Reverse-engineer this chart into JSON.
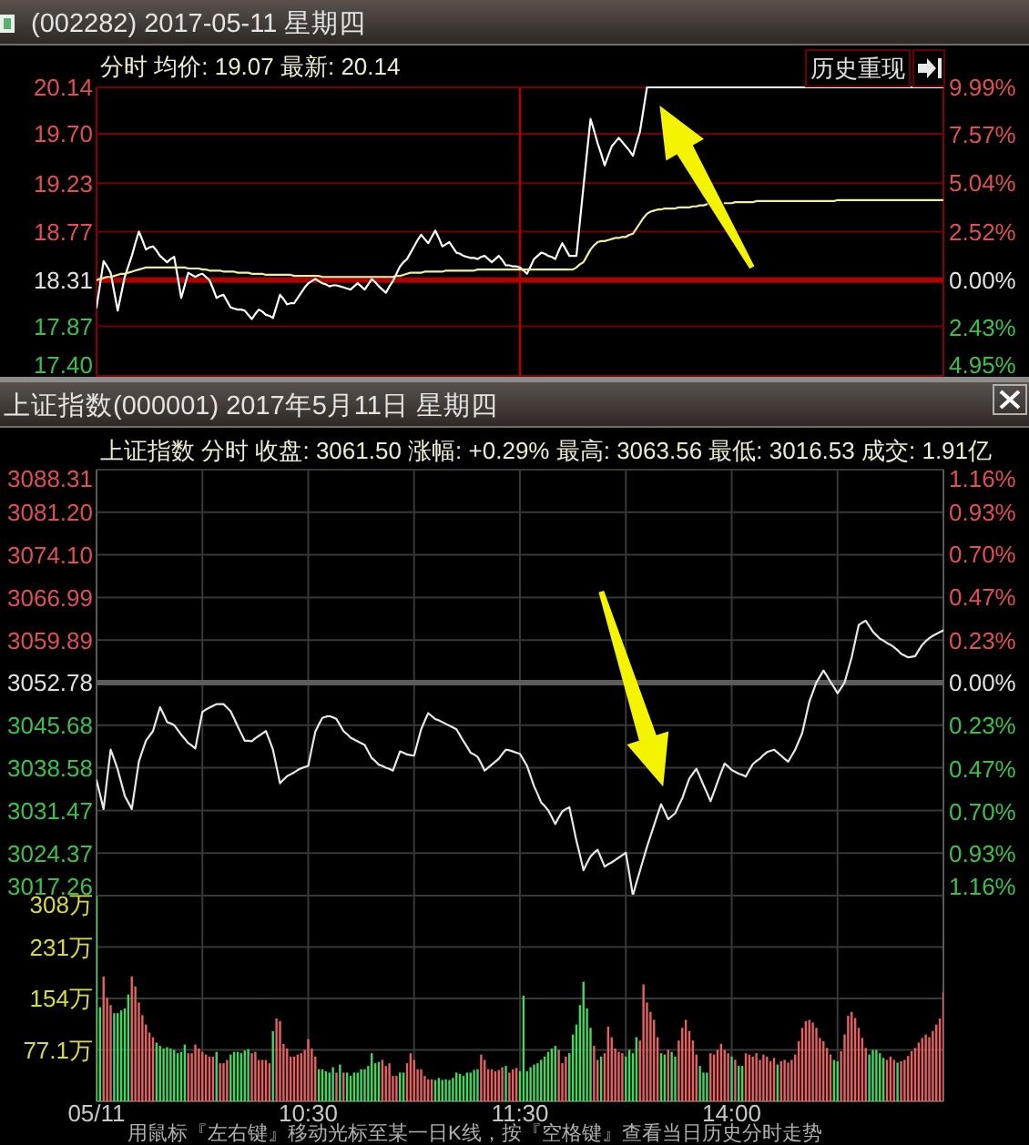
{
  "chart_data": [
    {
      "type": "line",
      "title": "(002282) 2017-05-11 星期四",
      "subtitle": "分时 均价: 19.07 最新: 20.14",
      "annotations": [
        "历史重现"
      ],
      "categories": [
        "05/11",
        null,
        null,
        null,
        null,
        null,
        null,
        null,
        null,
        null,
        null,
        null,
        null,
        null,
        null,
        null,
        null,
        null,
        null,
        null,
        null,
        null,
        null,
        null,
        null,
        null,
        null,
        null,
        null,
        null,
        null,
        null,
        null,
        null,
        null,
        null,
        null,
        null,
        null,
        null,
        null,
        null,
        null,
        null,
        null,
        null,
        null,
        null,
        null,
        null,
        null,
        null,
        null,
        null,
        null,
        null,
        null,
        null,
        null,
        null,
        "10:30",
        null,
        null,
        null,
        null,
        null,
        null,
        null,
        null,
        null,
        null,
        null,
        null,
        null,
        null,
        null,
        null,
        null,
        null,
        null,
        null,
        null,
        null,
        null,
        null,
        null,
        null,
        null,
        null,
        null,
        null,
        null,
        null,
        null,
        null,
        null,
        null,
        null,
        null,
        null,
        null,
        null,
        null,
        null,
        null,
        null,
        null,
        null,
        null,
        null,
        null,
        null,
        null,
        null,
        null,
        null,
        null,
        null,
        null,
        null,
        "11:30",
        null,
        null,
        null,
        null,
        null,
        null,
        null,
        null,
        null,
        null,
        null,
        null,
        null,
        null,
        null,
        null,
        null,
        null,
        null,
        null,
        null,
        null,
        null,
        null,
        null,
        null,
        null,
        null,
        null,
        null,
        null,
        null,
        null,
        null,
        null,
        null,
        null,
        null,
        null,
        null,
        null,
        null,
        null,
        null,
        null,
        null,
        null,
        null,
        null,
        null,
        null,
        null,
        null,
        null,
        null,
        null,
        null,
        null,
        null,
        "14:00",
        null,
        null,
        null,
        null,
        null,
        null,
        null,
        null,
        null,
        null,
        null,
        null,
        null,
        null,
        null,
        null,
        null,
        null,
        null,
        null,
        null,
        null,
        null,
        null,
        null,
        null,
        null,
        null,
        null,
        null,
        null,
        null,
        null,
        null,
        null,
        null,
        null,
        null,
        null,
        null,
        null,
        null,
        null,
        null,
        null,
        null,
        null,
        null,
        null,
        null,
        null,
        null,
        null,
        null,
        null,
        null,
        null,
        null,
        null,
        null
      ],
      "series": [
        {
          "color": "#ffffff",
          "values": [
            18.05,
            18.27,
            18.49,
            18.44,
            18.38,
            18.2,
            18.02,
            18.18,
            18.34,
            18.44,
            18.54,
            18.66,
            18.77,
            18.69,
            18.6,
            18.62,
            18.63,
            18.59,
            18.54,
            18.51,
            18.48,
            18.51,
            18.53,
            18.34,
            18.14,
            18.26,
            18.38,
            18.36,
            18.34,
            18.36,
            18.37,
            18.34,
            18.31,
            18.23,
            18.14,
            18.16,
            18.17,
            18.11,
            18.05,
            18.04,
            18.03,
            18.03,
            18.02,
            17.98,
            17.94,
            17.99,
            18.03,
            18.01,
            17.98,
            17.97,
            17.95,
            18.06,
            18.17,
            18.13,
            18.08,
            18.09,
            18.09,
            18.14,
            18.19,
            18.24,
            18.28,
            18.3,
            18.32,
            18.3,
            18.28,
            18.27,
            18.25,
            18.26,
            18.26,
            18.25,
            18.24,
            18.23,
            18.22,
            18.25,
            18.28,
            18.25,
            18.22,
            18.27,
            18.32,
            18.29,
            18.25,
            18.22,
            18.19,
            18.25,
            18.3,
            18.37,
            18.44,
            18.48,
            18.51,
            18.57,
            18.63,
            18.69,
            18.74,
            18.7,
            18.66,
            18.72,
            18.78,
            18.71,
            18.63,
            18.65,
            18.67,
            18.62,
            18.57,
            18.56,
            18.54,
            18.53,
            18.52,
            18.52,
            18.51,
            18.53,
            18.54,
            18.51,
            18.48,
            18.51,
            18.54,
            18.5,
            18.45,
            18.45,
            18.44,
            18.44,
            18.43,
            18.4,
            18.37,
            18.44,
            18.51,
            18.54,
            18.57,
            18.56,
            18.54,
            18.53,
            18.51,
            18.59,
            18.66,
            18.6,
            18.54,
            18.54,
            18.54,
            18.87,
            19.2,
            19.52,
            19.84,
            19.73,
            19.61,
            19.51,
            19.4,
            19.49,
            19.58,
            19.62,
            19.66,
            19.62,
            19.58,
            19.54,
            19.49,
            19.61,
            19.72,
            19.93,
            20.14,
            20.14,
            20.14,
            20.14,
            20.14,
            20.14,
            20.14,
            20.14,
            20.14,
            20.14,
            20.14,
            20.14,
            20.14,
            20.14,
            20.14,
            20.14,
            20.14,
            20.14,
            20.14,
            20.14,
            20.14,
            20.14,
            20.14,
            20.14,
            20.14,
            20.14,
            20.14,
            20.14,
            20.14,
            20.14,
            20.14,
            20.14,
            20.14,
            20.14,
            20.14,
            20.14,
            20.14,
            20.14,
            20.14,
            20.14,
            20.14,
            20.14,
            20.14,
            20.14,
            20.14,
            20.14,
            20.14,
            20.14,
            20.14,
            20.14,
            20.14,
            20.14,
            20.14,
            20.14,
            20.14,
            20.14,
            20.14,
            20.14,
            20.14,
            20.14,
            20.14,
            20.14,
            20.14,
            20.14,
            20.14,
            20.14,
            20.14,
            20.14,
            20.14,
            20.14,
            20.14,
            20.14,
            20.14,
            20.14,
            20.14,
            20.14,
            20.14,
            20.14,
            20.14,
            20.14,
            20.14,
            20.14,
            20.14,
            20.14,
            20.14
          ]
        },
        {
          "color": "#f0f0a0",
          "values": [
            18.31,
            18.32,
            18.33,
            18.34,
            18.34,
            18.35,
            18.36,
            18.37,
            18.37,
            18.38,
            18.39,
            18.4,
            18.41,
            18.42,
            18.43,
            18.43,
            18.43,
            18.43,
            18.43,
            18.43,
            18.43,
            18.43,
            18.43,
            18.43,
            18.43,
            18.43,
            18.42,
            18.42,
            18.42,
            18.42,
            18.41,
            18.41,
            18.4,
            18.4,
            18.4,
            18.4,
            18.39,
            18.39,
            18.39,
            18.39,
            18.38,
            18.38,
            18.38,
            18.38,
            18.37,
            18.37,
            18.37,
            18.37,
            18.36,
            18.36,
            18.36,
            18.36,
            18.36,
            18.36,
            18.36,
            18.36,
            18.35,
            18.35,
            18.35,
            18.35,
            18.35,
            18.35,
            18.35,
            18.35,
            18.34,
            18.34,
            18.34,
            18.34,
            18.34,
            18.34,
            18.34,
            18.34,
            18.34,
            18.34,
            18.34,
            18.34,
            18.34,
            18.34,
            18.34,
            18.34,
            18.34,
            18.34,
            18.34,
            18.34,
            18.34,
            18.35,
            18.35,
            18.36,
            18.37,
            18.38,
            18.38,
            18.38,
            18.38,
            18.39,
            18.39,
            18.39,
            18.39,
            18.39,
            18.39,
            18.4,
            18.4,
            18.4,
            18.4,
            18.4,
            18.4,
            18.4,
            18.4,
            18.4,
            18.41,
            18.41,
            18.41,
            18.41,
            18.41,
            18.41,
            18.41,
            18.41,
            18.41,
            18.41,
            18.41,
            18.41,
            18.41,
            18.41,
            18.41,
            18.41,
            18.41,
            18.41,
            18.41,
            18.41,
            18.41,
            18.41,
            18.41,
            18.41,
            18.41,
            18.41,
            18.41,
            18.41,
            18.43,
            18.46,
            18.48,
            18.54,
            18.6,
            18.64,
            18.67,
            18.68,
            18.68,
            18.69,
            18.7,
            18.71,
            18.71,
            18.72,
            18.72,
            18.74,
            18.75,
            18.8,
            18.85,
            18.9,
            18.94,
            18.96,
            18.97,
            18.98,
            18.98,
            18.99,
            18.99,
            18.99,
            18.99,
            19.0,
            19.0,
            19.0,
            19.0,
            19.01,
            19.01,
            19.02,
            19.02,
            19.03,
            null,
            null,
            null,
            null,
            19.04,
            19.04,
            19.04,
            19.05,
            19.05,
            19.05,
            19.05,
            19.05,
            19.05,
            19.06,
            19.06,
            19.06,
            19.06,
            19.06,
            19.06,
            19.06,
            19.06,
            19.06,
            19.06,
            19.06,
            19.06,
            19.06,
            19.06,
            19.06,
            19.06,
            19.06,
            19.06,
            19.06,
            19.06,
            19.06,
            19.06,
            19.06,
            19.07,
            19.07,
            19.07,
            19.07,
            19.07,
            19.07,
            19.07,
            19.07,
            19.07,
            19.07,
            19.07,
            19.07,
            19.07,
            19.07,
            19.07,
            19.07,
            19.07,
            19.07,
            19.07,
            19.07,
            19.07,
            19.07,
            19.07,
            19.07,
            19.07,
            19.07,
            19.07,
            19.07,
            19.07,
            19.07,
            19.07
          ]
        }
      ],
      "ylim": [
        17.4,
        20.14
      ],
      "yticks": [
        20.14,
        {
          "value": 19.7,
          "label": "19.70"
        },
        19.23,
        18.77,
        18.31,
        17.87,
        {
          "value": 17.4,
          "label": "17.40"
        }
      ],
      "y2lim": [
        -4.95,
        9.99
      ],
      "y2ticks": [
        {
          "value": 9.99,
          "label": "9.99%"
        },
        {
          "value": 7.57,
          "label": "7.57%"
        },
        {
          "value": 5.04,
          "label": "5.04%"
        },
        {
          "value": 2.52,
          "label": "2.52%"
        },
        {
          "value": 0,
          "label": "0.00%"
        },
        {
          "value": -2.43,
          "label": "2.43%"
        },
        {
          "value": -4.95,
          "label": "4.95%"
        }
      ],
      "grid": "y",
      "ref_lines": [
        {
          "axis": "y",
          "value": 18.31,
          "color": "#b00000"
        },
        {
          "axis": "x",
          "value": "11:30",
          "color": "#b00000"
        }
      ],
      "tick_labels": "y"
    },
    {
      "type": "line",
      "title": "上证指数(000001) 2017年5月11日 星期四",
      "subtitle": "上证指数 分时 收盘: 3061.50 涨幅: +0.29% 最高: 3063.56 最低: 3016.53 成交: 1.91亿",
      "categories": [
        "05/11",
        null,
        null,
        null,
        null,
        null,
        null,
        null,
        null,
        null,
        null,
        null,
        null,
        null,
        null,
        null,
        null,
        null,
        null,
        null,
        null,
        null,
        null,
        null,
        null,
        null,
        null,
        null,
        null,
        null,
        null,
        null,
        null,
        null,
        null,
        null,
        null,
        null,
        null,
        null,
        null,
        null,
        null,
        null,
        null,
        null,
        null,
        null,
        null,
        null,
        null,
        null,
        null,
        null,
        null,
        null,
        null,
        null,
        null,
        null,
        "10:30",
        null,
        null,
        null,
        null,
        null,
        null,
        null,
        null,
        null,
        null,
        null,
        null,
        null,
        null,
        null,
        null,
        null,
        null,
        null,
        null,
        null,
        null,
        null,
        null,
        null,
        null,
        null,
        null,
        null,
        null,
        null,
        null,
        null,
        null,
        null,
        null,
        null,
        null,
        null,
        null,
        null,
        null,
        null,
        null,
        null,
        null,
        null,
        null,
        null,
        null,
        null,
        null,
        null,
        null,
        null,
        null,
        null,
        null,
        null,
        "11:30",
        null,
        null,
        null,
        null,
        null,
        null,
        null,
        null,
        null,
        null,
        null,
        null,
        null,
        null,
        null,
        null,
        null,
        null,
        null,
        null,
        null,
        null,
        null,
        null,
        null,
        null,
        null,
        null,
        null,
        null,
        null,
        null,
        null,
        null,
        null,
        null,
        null,
        null,
        null,
        null,
        null,
        null,
        null,
        null,
        null,
        null,
        null,
        null,
        null,
        null,
        null,
        null,
        null,
        null,
        null,
        null,
        null,
        null,
        null,
        "14:00",
        null,
        null,
        null,
        null,
        null,
        null,
        null,
        null,
        null,
        null,
        null,
        null,
        null,
        null,
        null,
        null,
        null,
        null,
        null,
        null,
        null,
        null,
        null,
        null,
        null,
        null,
        null,
        null,
        null,
        null,
        null,
        null,
        null,
        null,
        null,
        null,
        null,
        null,
        null,
        null,
        null,
        null,
        null,
        null,
        null,
        null,
        null,
        null,
        null,
        null,
        null,
        null,
        null,
        null,
        null,
        null,
        null,
        null,
        null,
        null
      ],
      "series": [
        {
          "color": "#e8e8e8",
          "values": [
            3036.5,
            3034.1,
            3031.7,
            3036.7,
            3041.6,
            3040.0,
            3038.3,
            3036.1,
            3033.9,
            3032.8,
            3031.7,
            3035.7,
            3039.6,
            3041.4,
            3043.1,
            3043.9,
            3044.7,
            3046.7,
            3048.7,
            3047.5,
            3046.2,
            3046.0,
            3045.7,
            3044.9,
            3044.1,
            3043.4,
            3042.7,
            3042.3,
            3041.8,
            3044.9,
            3047.9,
            3048.3,
            3048.6,
            3048.9,
            3049.2,
            3049.2,
            3049.2,
            3048.6,
            3048.0,
            3046.8,
            3045.5,
            3044.3,
            3043.1,
            3043.1,
            3043.0,
            3043.5,
            3043.9,
            3044.3,
            3044.7,
            3043.2,
            3041.6,
            3038.8,
            3036.0,
            3036.6,
            3037.2,
            3037.5,
            3037.8,
            3038.2,
            3038.5,
            3038.7,
            3038.9,
            3041.8,
            3044.6,
            3045.8,
            3046.9,
            3047.1,
            3047.2,
            3047.0,
            3046.7,
            3045.7,
            3044.7,
            3044.2,
            3043.6,
            3043.3,
            3043.0,
            3042.7,
            3042.4,
            3041.3,
            3040.2,
            3039.7,
            3039.1,
            3038.9,
            3038.6,
            3038.4,
            3038.1,
            3039.7,
            3041.3,
            3041.1,
            3040.8,
            3040.7,
            3040.6,
            3042.8,
            3045.0,
            3046.4,
            3047.7,
            3047.2,
            3046.7,
            3046.5,
            3046.2,
            3045.9,
            3045.6,
            3045.3,
            3045.0,
            3044.0,
            3043.0,
            3042.1,
            3041.1,
            3040.8,
            3040.4,
            3039.3,
            3038.1,
            3038.6,
            3039.1,
            3039.6,
            3040.1,
            3040.9,
            3041.6,
            3041.5,
            3041.3,
            3041.1,
            3040.9,
            3039.9,
            3038.9,
            3037.2,
            3035.5,
            3034.2,
            3032.8,
            3032.2,
            3031.5,
            3030.4,
            3029.2,
            3030.3,
            3031.3,
            3031.7,
            3032.0,
            3029.2,
            3026.4,
            3024.0,
            3021.5,
            3022.7,
            3023.8,
            3024.4,
            3024.9,
            3023.5,
            3022.1,
            3022.5,
            3022.8,
            3023.2,
            3023.6,
            3024.0,
            3024.4,
            3020.9,
            3017.3,
            3019.4,
            3021.4,
            3023.4,
            3025.4,
            3027.2,
            3029.0,
            3030.8,
            3032.5,
            3031.3,
            3030.0,
            3030.5,
            3031.0,
            3032.3,
            3033.5,
            3035.2,
            3036.8,
            3037.6,
            3038.4,
            3037.1,
            3035.7,
            3034.4,
            3033.0,
            3034.6,
            3036.2,
            3037.8,
            3039.3,
            3038.8,
            3038.2,
            3037.9,
            3037.6,
            3037.4,
            3037.1,
            3038.2,
            3039.2,
            3039.7,
            3040.1,
            3040.7,
            3041.2,
            3041.4,
            3041.6,
            3041.1,
            3040.6,
            3040.1,
            3039.6,
            3040.6,
            3041.6,
            3043.0,
            3044.4,
            3047.0,
            3049.6,
            3051.2,
            3052.8,
            3053.8,
            3054.8,
            3053.9,
            3052.9,
            3052.0,
            3051.0,
            3051.9,
            3052.8,
            3054.9,
            3057.0,
            3059.7,
            3062.4,
            3062.8,
            3063.1,
            3062.2,
            3061.3,
            3060.7,
            3060.1,
            3059.8,
            3059.4,
            3059.1,
            3058.7,
            3058.2,
            3057.6,
            3057.3,
            3057.0,
            3057.1,
            3057.2,
            3058.2,
            3059.1,
            3059.7,
            3060.2,
            3060.6,
            3060.9,
            3061.2,
            3061.5
          ]
        }
      ],
      "ylim": [
        3017.26,
        3088.31
      ],
      "yticks": [
        3088.31,
        {
          "value": 3081.2,
          "label": "3081.20"
        },
        {
          "value": 3074.1,
          "label": "3074.10"
        },
        3066.99,
        3059.89,
        3052.78,
        3045.68,
        3038.58,
        3031.47,
        3024.37,
        3017.26
      ],
      "y2lim": [
        -1.16,
        1.16
      ],
      "y2ticks": [
        {
          "value": 1.16,
          "label": "1.16%"
        },
        {
          "value": 0.93,
          "label": "0.93%"
        },
        {
          "value": 0.7,
          "label": "0.70%"
        },
        {
          "value": 0.47,
          "label": "0.47%"
        },
        {
          "value": 0.23,
          "label": "0.23%"
        },
        {
          "value": 0,
          "label": "0.00%"
        },
        {
          "value": -0.23,
          "label": "0.23%"
        },
        {
          "value": -0.47,
          "label": "0.47%"
        },
        {
          "value": -0.7,
          "label": "0.70%"
        },
        {
          "value": -0.93,
          "label": "0.93%"
        },
        {
          "value": -1.16,
          "label": "1.16%"
        }
      ],
      "grid": true,
      "ref_lines": [
        {
          "axis": "y",
          "value": 3052.78,
          "color": "#5c5c5c"
        }
      ],
      "tick_labels": "y"
    },
    {
      "type": "bar",
      "annotations": [
        "用鼠标『左右键』移动光标至某一日K线，按『空格键』查看当日历史分时走势"
      ],
      "categories": [
        "05/11",
        null,
        null,
        null,
        null,
        null,
        null,
        null,
        null,
        null,
        null,
        null,
        null,
        null,
        null,
        null,
        null,
        null,
        null,
        null,
        null,
        null,
        null,
        null,
        null,
        null,
        null,
        null,
        null,
        null,
        null,
        null,
        null,
        null,
        null,
        null,
        null,
        null,
        null,
        null,
        null,
        null,
        null,
        null,
        null,
        null,
        null,
        null,
        null,
        null,
        null,
        null,
        null,
        null,
        null,
        null,
        null,
        null,
        null,
        null,
        "10:30",
        null,
        null,
        null,
        null,
        null,
        null,
        null,
        null,
        null,
        null,
        null,
        null,
        null,
        null,
        null,
        null,
        null,
        null,
        null,
        null,
        null,
        null,
        null,
        null,
        null,
        null,
        null,
        null,
        null,
        null,
        null,
        null,
        null,
        null,
        null,
        null,
        null,
        null,
        null,
        null,
        null,
        null,
        null,
        null,
        null,
        null,
        null,
        null,
        null,
        null,
        null,
        null,
        null,
        null,
        null,
        null,
        null,
        null,
        null,
        "11:30",
        null,
        null,
        null,
        null,
        null,
        null,
        null,
        null,
        null,
        null,
        null,
        null,
        null,
        null,
        null,
        null,
        null,
        null,
        null,
        null,
        null,
        null,
        null,
        null,
        null,
        null,
        null,
        null,
        null,
        null,
        null,
        null,
        null,
        null,
        null,
        null,
        null,
        null,
        null,
        null,
        null,
        null,
        null,
        null,
        null,
        null,
        null,
        null,
        null,
        null,
        null,
        null,
        null,
        null,
        null,
        null,
        null,
        null,
        null,
        "14:00",
        null,
        null,
        null,
        null,
        null,
        null,
        null,
        null,
        null,
        null,
        null,
        null,
        null,
        null,
        null,
        null,
        null,
        null,
        null,
        null,
        null,
        null,
        null,
        null,
        null,
        null,
        null,
        null,
        null,
        null,
        null,
        null,
        null,
        null,
        null,
        null,
        null,
        null,
        null,
        null,
        null,
        null,
        null,
        null,
        null,
        null,
        null,
        null,
        null,
        null,
        null,
        null,
        null,
        null,
        null,
        null,
        null,
        null,
        null,
        null
      ],
      "values": [
        308,
        141,
        187,
        155,
        144,
        132,
        132,
        136,
        139,
        160,
        187,
        172,
        148,
        129,
        115,
        103,
        96,
        88,
        83,
        79,
        81,
        79,
        77,
        72,
        74,
        85,
        72,
        72,
        85,
        79,
        74,
        70,
        67,
        67,
        74,
        57,
        57,
        62,
        70,
        74,
        74,
        72,
        76,
        78,
        72,
        74,
        62,
        62,
        62,
        57,
        105,
        124,
        120,
        86,
        79,
        67,
        67,
        70,
        72,
        77,
        93,
        79,
        67,
        48,
        48,
        45,
        43,
        51,
        43,
        55,
        43,
        43,
        38,
        43,
        43,
        48,
        48,
        53,
        72,
        57,
        59,
        62,
        53,
        57,
        38,
        38,
        43,
        43,
        57,
        72,
        62,
        48,
        48,
        38,
        33,
        33,
        32,
        35,
        32,
        33,
        32,
        35,
        43,
        41,
        38,
        43,
        43,
        47,
        48,
        70,
        62,
        48,
        48,
        45,
        47,
        51,
        53,
        43,
        48,
        50,
        45,
        158,
        45,
        51,
        55,
        57,
        62,
        67,
        74,
        79,
        83,
        77,
        57,
        67,
        72,
        100,
        115,
        144,
        179,
        139,
        110,
        83,
        62,
        67,
        72,
        112,
        96,
        79,
        74,
        72,
        67,
        77,
        72,
        96,
        91,
        175,
        148,
        134,
        122,
        96,
        72,
        70,
        77,
        74,
        67,
        91,
        110,
        122,
        105,
        91,
        70,
        53,
        43,
        43,
        72,
        70,
        77,
        86,
        77,
        72,
        67,
        62,
        53,
        53,
        72,
        70,
        67,
        72,
        62,
        70,
        67,
        60,
        65,
        55,
        60,
        62,
        58,
        62,
        70,
        90,
        110,
        120,
        122,
        118,
        110,
        95,
        90,
        80,
        70,
        62,
        60,
        75,
        100,
        128,
        134,
        125,
        110,
        95,
        80,
        70,
        77,
        77,
        72,
        65,
        62,
        67,
        62,
        58,
        60,
        62,
        68,
        75,
        80,
        88,
        95,
        100,
        96,
        105,
        115,
        124,
        163
      ],
      "colors": [
        "#40d860",
        "#40d860",
        "#e86060",
        "#e86060",
        "#e86060",
        "#40d860",
        "#40d860",
        "#40d860",
        "#40d860",
        "#40d860",
        "#e86060",
        "#e86060",
        "#e86060",
        "#e86060",
        "#e86060",
        "#e86060",
        "#e86060",
        "#40d860",
        "#40d860",
        "#40d860",
        "#40d860",
        "#40d860",
        "#40d860",
        "#40d860",
        "#40d860",
        "#40d860",
        "#e86060",
        "#e86060",
        "#e86060",
        "#e86060",
        "#e86060",
        "#e86060",
        "#e86060",
        "#e86060",
        "#40d860",
        "#e86060",
        "#e86060",
        "#e86060",
        "#40d860",
        "#40d860",
        "#40d860",
        "#40d860",
        "#40d860",
        "#40d860",
        "#e86060",
        "#e86060",
        "#e86060",
        "#e86060",
        "#e86060",
        "#e86060",
        "#40d860",
        "#e86060",
        "#e86060",
        "#e86060",
        "#e86060",
        "#e86060",
        "#e86060",
        "#e86060",
        "#e86060",
        "#e86060",
        "#e86060",
        "#e86060",
        "#e86060",
        "#40d860",
        "#40d860",
        "#40d860",
        "#40d860",
        "#40d860",
        "#e86060",
        "#40d860",
        "#e86060",
        "#40d860",
        "#40d860",
        "#40d860",
        "#40d860",
        "#40d860",
        "#40d860",
        "#40d860",
        "#40d860",
        "#40d860",
        "#40d860",
        "#e86060",
        "#e86060",
        "#e86060",
        "#e86060",
        "#e86060",
        "#40d860",
        "#40d860",
        "#e86060",
        "#e86060",
        "#e86060",
        "#e86060",
        "#e86060",
        "#e86060",
        "#e86060",
        "#e86060",
        "#40d860",
        "#40d860",
        "#40d860",
        "#40d860",
        "#40d860",
        "#40d860",
        "#40d860",
        "#40d860",
        "#40d860",
        "#40d860",
        "#40d860",
        "#40d860",
        "#40d860",
        "#e86060",
        "#e86060",
        "#e86060",
        "#e86060",
        "#e86060",
        "#e86060",
        "#e86060",
        "#40d860",
        "#e86060",
        "#e86060",
        "#e86060",
        "#40d860",
        "#40d860",
        "#40d860",
        "#40d860",
        "#40d860",
        "#40d860",
        "#40d860",
        "#40d860",
        "#40d860",
        "#40d860",
        "#40d860",
        "#e86060",
        "#e86060",
        "#e86060",
        "#40d860",
        "#40d860",
        "#40d860",
        "#40d860",
        "#40d860",
        "#40d860",
        "#40d860",
        "#e86060",
        "#e86060",
        "#40d860",
        "#e86060",
        "#e86060",
        "#e86060",
        "#e86060",
        "#e86060",
        "#e86060",
        "#40d860",
        "#40d860",
        "#40d860",
        "#40d860",
        "#e86060",
        "#e86060",
        "#e86060",
        "#e86060",
        "#e86060",
        "#e86060",
        "#40d860",
        "#40d860",
        "#e86060",
        "#40d860",
        "#40d860",
        "#e86060",
        "#e86060",
        "#e86060",
        "#e86060",
        "#e86060",
        "#e86060",
        "#40d860",
        "#40d860",
        "#40d860",
        "#e86060",
        "#e86060",
        "#e86060",
        "#e86060",
        "#e86060",
        "#e86060",
        "#40d860",
        "#e86060",
        "#40d860",
        "#40d860",
        "#e86060",
        "#e86060",
        "#e86060",
        "#e86060",
        "#e86060",
        "#e86060",
        "#e86060",
        "#e86060",
        "#e86060",
        "#40d860",
        "#e86060",
        "#e86060",
        "#e86060",
        "#e86060",
        "#e86060",
        "#e86060",
        "#e86060",
        "#e86060",
        "#e86060",
        "#e86060",
        "#e86060",
        "#e86060",
        "#e86060",
        "#e86060",
        "#e86060",
        "#40d860",
        "#40d860",
        "#e86060",
        "#e86060",
        "#e86060",
        "#e86060",
        "#e86060",
        "#e86060",
        "#e86060",
        "#e86060",
        "#40d860",
        "#40d860",
        "#40d860",
        "#40d860",
        "#40d860",
        "#e86060",
        "#e86060",
        "#e86060",
        "#40d860",
        "#e86060",
        "#e86060",
        "#e86060",
        "#e86060",
        "#e86060",
        "#e86060",
        "#e86060",
        "#e86060",
        "#e86060",
        "#e86060",
        "#e86060",
        "#e86060",
        "#e86060"
      ],
      "ylim": [
        0,
        308
      ],
      "yticks": [
        {
          "value": 308,
          "label": "308万"
        },
        {
          "value": 231,
          "label": "231万"
        },
        {
          "value": 154,
          "label": "154万"
        },
        {
          "value": 77.1,
          "label": "77.1万"
        }
      ],
      "grid": true
    }
  ]
}
